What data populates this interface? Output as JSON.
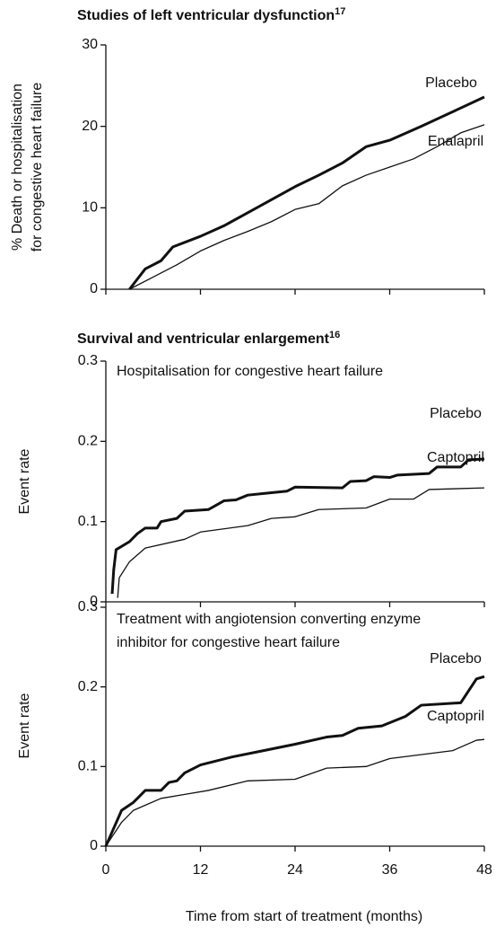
{
  "chart_data": [
    {
      "type": "line",
      "title": "Studies of left ventricular dysfunction",
      "title_superscript": "17",
      "ylabel": [
        "% Death or hospitalisation",
        "for congestive heart failure"
      ],
      "xlim": [
        0,
        48
      ],
      "xticks": [
        0,
        12,
        24,
        36,
        48
      ],
      "show_xtick_labels": false,
      "ylim": [
        0,
        30
      ],
      "yticks": [
        0,
        10,
        20,
        30
      ],
      "series": [
        {
          "name": "Placebo",
          "color": "#111111",
          "width": 3,
          "x": [
            3,
            5,
            6,
            7,
            8.5,
            12,
            15,
            18,
            21,
            24,
            27,
            30,
            33,
            36,
            40,
            44,
            48
          ],
          "values": [
            0,
            2.5,
            3,
            3.5,
            5.2,
            6.5,
            7.8,
            9.4,
            11,
            12.6,
            14,
            15.5,
            17.5,
            18.3,
            20,
            21.8,
            23.6
          ]
        },
        {
          "name": "Enalapril",
          "color": "#111111",
          "width": 1.3,
          "x": [
            3,
            6,
            9,
            12,
            15,
            18,
            21,
            24,
            27,
            30,
            33,
            36,
            39,
            42,
            45,
            48
          ],
          "values": [
            0,
            1.5,
            3,
            4.7,
            6,
            7.1,
            8.3,
            9.8,
            10.5,
            12.7,
            14,
            15,
            16,
            17.5,
            19.2,
            20.2
          ]
        }
      ]
    },
    {
      "type": "line",
      "title": "Survival and ventricular enlargement",
      "title_superscript": "16",
      "annotation": [
        "Hospitalisation for congestive heart failure"
      ],
      "ylabel": [
        "Event rate"
      ],
      "xlim": [
        0,
        48
      ],
      "xticks": [
        0,
        12,
        24,
        36,
        48
      ],
      "show_xtick_labels": false,
      "ylim": [
        0,
        0.3
      ],
      "yticks": [
        0,
        0.1,
        0.2,
        0.3
      ],
      "series": [
        {
          "name": "Placebo",
          "color": "#111111",
          "width": 3,
          "x": [
            0.8,
            1,
            1.3,
            3,
            4,
            5,
            6.5,
            7,
            9,
            10,
            13,
            15,
            16.5,
            18,
            21,
            23,
            24,
            30,
            31,
            33,
            34,
            36,
            37,
            41,
            42,
            45,
            46,
            48
          ],
          "values": [
            0.01,
            0.04,
            0.065,
            0.075,
            0.085,
            0.092,
            0.092,
            0.1,
            0.104,
            0.113,
            0.115,
            0.126,
            0.127,
            0.133,
            0.136,
            0.138,
            0.143,
            0.142,
            0.15,
            0.151,
            0.156,
            0.155,
            0.158,
            0.16,
            0.168,
            0.168,
            0.177,
            0.178
          ]
        },
        {
          "name": "Captopril",
          "color": "#111111",
          "width": 1.3,
          "x": [
            1.5,
            1.7,
            3,
            5,
            10,
            12,
            18,
            21,
            24,
            27,
            33,
            36,
            39,
            41,
            48
          ],
          "values": [
            0.005,
            0.03,
            0.05,
            0.067,
            0.078,
            0.087,
            0.095,
            0.104,
            0.106,
            0.115,
            0.117,
            0.128,
            0.128,
            0.14,
            0.142
          ]
        }
      ]
    },
    {
      "type": "line",
      "annotation": [
        "Treatment with angiotension converting enzyme",
        "inhibitor for congestive heart failure"
      ],
      "ylabel": [
        "Event rate"
      ],
      "xlabel": "Time from start of treatment (months)",
      "xlim": [
        0,
        48
      ],
      "xticks": [
        0,
        12,
        24,
        36,
        48
      ],
      "show_xtick_labels": true,
      "ylim": [
        0,
        0.3
      ],
      "yticks": [
        0,
        0.1,
        0.2,
        0.3
      ],
      "series": [
        {
          "name": "Placebo",
          "color": "#111111",
          "width": 3,
          "x": [
            0,
            2,
            3.5,
            5,
            7,
            8,
            9,
            10,
            12,
            16,
            20,
            24,
            28,
            30,
            32,
            35,
            38,
            40,
            45,
            47,
            48
          ],
          "values": [
            0,
            0.045,
            0.055,
            0.07,
            0.07,
            0.08,
            0.082,
            0.092,
            0.102,
            0.112,
            0.12,
            0.128,
            0.137,
            0.139,
            0.148,
            0.151,
            0.163,
            0.177,
            0.18,
            0.21,
            0.213
          ]
        },
        {
          "name": "Captopril",
          "color": "#111111",
          "width": 1.3,
          "x": [
            0,
            2,
            3.5,
            7,
            10,
            13,
            18,
            24,
            28,
            33,
            36,
            44,
            47,
            48
          ],
          "values": [
            0,
            0.03,
            0.045,
            0.06,
            0.065,
            0.07,
            0.082,
            0.084,
            0.098,
            0.1,
            0.11,
            0.12,
            0.133,
            0.134
          ]
        }
      ]
    }
  ]
}
